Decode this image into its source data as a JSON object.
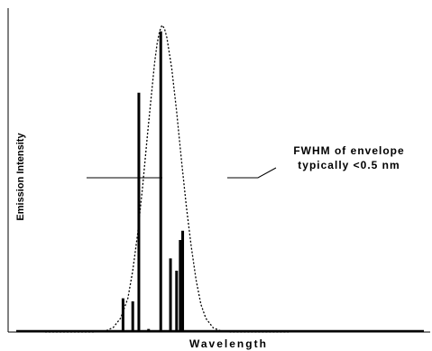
{
  "chart_data": {
    "type": "line",
    "title": "",
    "xlabel": "Wavelength",
    "ylabel": "Emission Intensity",
    "xlim": [
      0,
      100
    ],
    "ylim": [
      0,
      100
    ],
    "grid": false,
    "x_ticks": false,
    "y_ticks": false,
    "series": [
      {
        "style": "dotted",
        "x": [
          0,
          15,
          20,
          25,
          28,
          31,
          34,
          36,
          38,
          40,
          42,
          44,
          45,
          46,
          47,
          48,
          49,
          50,
          52,
          54,
          56,
          58,
          60,
          62,
          64,
          66,
          69,
          72,
          76,
          82,
          100
        ],
        "y": [
          0,
          0,
          0,
          0.4,
          1.5,
          4.5,
          11,
          20,
          32,
          47,
          64,
          80,
          88,
          94,
          98,
          100,
          99,
          96,
          86,
          72,
          56,
          41,
          28,
          17,
          9,
          4.5,
          1.4,
          0.4,
          0,
          0,
          0
        ]
      },
      {
        "style": "solid",
        "type": "stick",
        "x": [
          32,
          36,
          38.5,
          42.5,
          47.5,
          51.5,
          54,
          55.5,
          56.5
        ],
        "y": [
          11,
          10,
          78,
          1,
          98,
          24,
          20,
          30,
          33
        ]
      }
    ],
    "annotations": [
      "FWHM of envelope",
      "typically <0.5 nm"
    ]
  }
}
